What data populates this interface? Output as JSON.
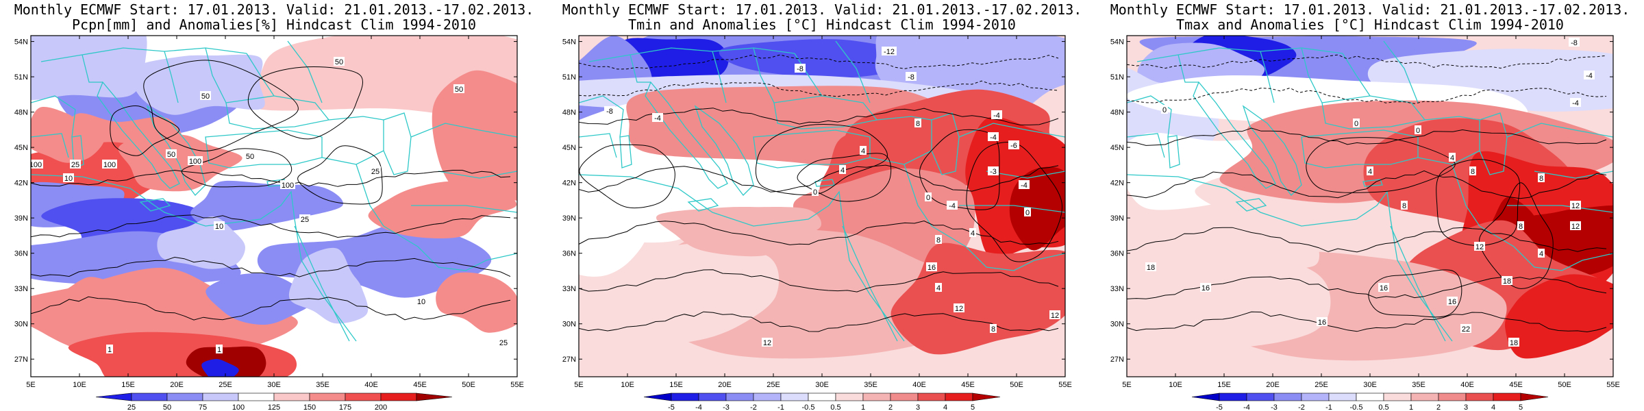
{
  "panels": [
    {
      "title_line1": "Monthly ECMWF Start: 17.01.2013. Valid: 21.01.2013.-17.02.2013.",
      "title_line2": "Pcpn[mm] and Anomalies[%] Hindcast Clim 1994-2010",
      "colorbar_labels": [
        "25",
        "50",
        "75",
        "100",
        "125",
        "150",
        "175",
        "200"
      ],
      "colorbar_colors": [
        "#1e1ee6",
        "#5050f0",
        "#8c8cf5",
        "#c8c8fa",
        "#ffffff",
        "#fac8c8",
        "#f58c8c",
        "#f05050",
        "#e61e1e",
        "#a00000"
      ],
      "contour_labels": [
        "50",
        "50",
        "50",
        "50",
        "100",
        "100",
        "100",
        "100",
        "25",
        "25",
        "25",
        "10",
        "10",
        "10",
        "1",
        "1",
        "50",
        "25"
      ],
      "background": "#ffffff"
    },
    {
      "title_line1": "Monthly ECMWF Start: 17.01.2013. Valid: 21.01.2013.-17.02.2013.",
      "title_line2": "Tmin and Anomalies [°C] Hindcast Clim 1994-2010",
      "colorbar_labels": [
        "-5",
        "-4",
        "-3",
        "-2",
        "-1",
        "-0.5",
        "0.5",
        "1",
        "2",
        "3",
        "4",
        "5"
      ],
      "colorbar_colors": [
        "#0000c8",
        "#1e1ee6",
        "#5050f0",
        "#8c8cf5",
        "#b4b4fa",
        "#dcdcfd",
        "#ffffff",
        "#fadcdc",
        "#f5b4b4",
        "#f08c8c",
        "#eb5050",
        "#e61e1e",
        "#b40000"
      ],
      "contour_labels": [
        "-12",
        "-8",
        "-8",
        "-8",
        "-4",
        "-4",
        "-4",
        "0",
        "0",
        "4",
        "4",
        "4",
        "8",
        "8",
        "12",
        "12",
        "16",
        "-4",
        "-6",
        "-3",
        "0",
        "4",
        "8",
        "12",
        "-4"
      ],
      "background": "#ffffff"
    },
    {
      "title_line1": "Monthly ECMWF Start: 17.01.2013. Valid: 21.01.2013.-17.02.2013.",
      "title_line2": "Tmax and Anomalies [°C] Hindcast Clim 1994-2010",
      "colorbar_labels": [
        "-5",
        "-4",
        "-3",
        "-2",
        "-1",
        "-0.5",
        "0.5",
        "1",
        "2",
        "3",
        "4",
        "5"
      ],
      "colorbar_colors": [
        "#0000c8",
        "#1e1ee6",
        "#5050f0",
        "#8c8cf5",
        "#b4b4fa",
        "#dcdcfd",
        "#ffffff",
        "#fadcdc",
        "#f5b4b4",
        "#f08c8c",
        "#eb5050",
        "#e61e1e",
        "#b40000"
      ],
      "contour_labels": [
        "-8",
        "-4",
        "-4",
        "0",
        "0",
        "0",
        "4",
        "4",
        "8",
        "8",
        "8",
        "12",
        "12",
        "16",
        "16",
        "16",
        "18",
        "18",
        "18",
        "22",
        "4",
        "8",
        "12",
        "16"
      ],
      "background": "#ffffff"
    }
  ],
  "axes": {
    "lat_labels": [
      "54N",
      "51N",
      "48N",
      "45N",
      "42N",
      "39N",
      "36N",
      "33N",
      "30N",
      "27N"
    ],
    "lon_labels": [
      "5E",
      "10E",
      "15E",
      "20E",
      "25E",
      "30E",
      "35E",
      "40E",
      "45E",
      "50E",
      "55E"
    ]
  }
}
